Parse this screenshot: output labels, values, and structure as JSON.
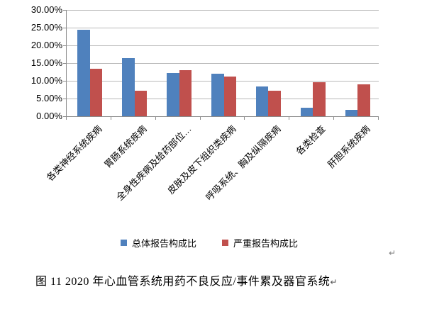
{
  "chart_data": {
    "type": "bar",
    "title": "",
    "categories": [
      "各类神经系统疾病",
      "胃肠系统疾病",
      "全身性疾病及给药部位…",
      "皮肤及皮下组织类疾病",
      "呼吸系统、胸及纵隔疾病",
      "各类检查",
      "肝胆系统疾病"
    ],
    "series": [
      {
        "name": "总体报告构成比",
        "color": "#4f81bd",
        "values": [
          24.4,
          16.4,
          12.3,
          12.0,
          8.4,
          2.5,
          1.9
        ]
      },
      {
        "name": "严重报告构成比",
        "color": "#c0504d",
        "values": [
          13.5,
          7.3,
          13.1,
          11.3,
          7.2,
          9.7,
          9.1
        ]
      }
    ],
    "y_axis": {
      "min": 0,
      "max": 30,
      "step": 5,
      "tick_labels": [
        "0.00%",
        "5.00%",
        "10.00%",
        "15.00%",
        "20.00%",
        "25.00%",
        "30.00%"
      ]
    },
    "grid": true,
    "legend_position": "bottom",
    "bar_colors": {
      "overall": "#4f81bd",
      "severe": "#c0504d"
    }
  },
  "caption": {
    "text": "图 11  2020 年心血管系统用药不良反应/事件累及器官系统",
    "return_mark": "↵"
  },
  "paragraph_mark": "↵"
}
